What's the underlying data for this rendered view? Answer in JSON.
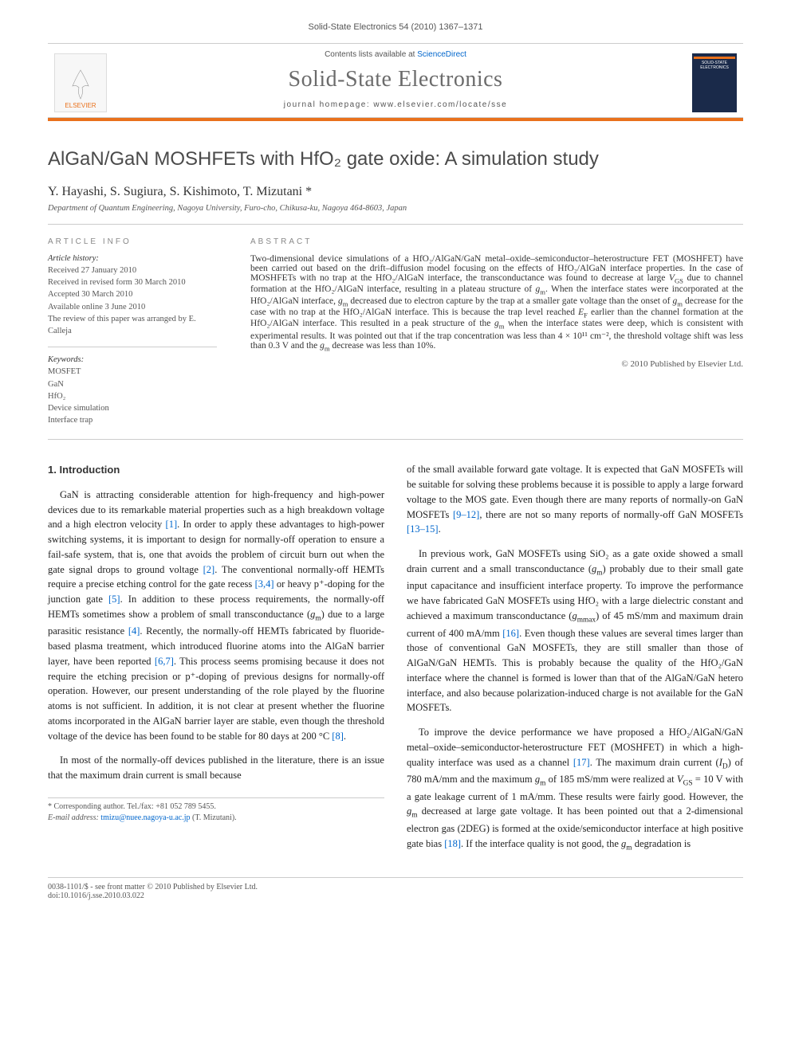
{
  "header": {
    "citation": "Solid-State Electronics 54 (2010) 1367–1371"
  },
  "banner": {
    "contents_prefix": "Contents lists available at ",
    "contents_link": "ScienceDirect",
    "journal_name": "Solid-State Electronics",
    "homepage": "journal homepage: www.elsevier.com/locate/sse",
    "publisher_logo": "ELSEVIER",
    "cover_text": "SOLID-STATE ELECTRONICS"
  },
  "title": "AlGaN/GaN MOSHFETs with HfO₂ gate oxide: A simulation study",
  "authors": "Y. Hayashi, S. Sugiura, S. Kishimoto, T. Mizutani *",
  "affiliation": "Department of Quantum Engineering, Nagoya University, Furo-cho, Chikusa-ku, Nagoya 464-8603, Japan",
  "article_info": {
    "label": "ARTICLE INFO",
    "history_label": "Article history:",
    "history": [
      "Received 27 January 2010",
      "Received in revised form 30 March 2010",
      "Accepted 30 March 2010",
      "Available online 3 June 2010",
      "The review of this paper was arranged by E. Calleja"
    ],
    "keywords_label": "Keywords:",
    "keywords": [
      "MOSFET",
      "GaN",
      "HfO₂",
      "Device simulation",
      "Interface trap"
    ]
  },
  "abstract": {
    "label": "ABSTRACT",
    "text": "Two-dimensional device simulations of a HfO₂/AlGaN/GaN metal–oxide–semiconductor–heterostructure FET (MOSHFET) have been carried out based on the drift–diffusion model focusing on the effects of HfO₂/AlGaN interface properties. In the case of MOSHFETs with no trap at the HfO₂/AlGaN interface, the transconductance was found to decrease at large V_GS due to channel formation at the HfO₂/AlGaN interface, resulting in a plateau structure of g_m. When the interface states were incorporated at the HfO₂/AlGaN interface, g_m decreased due to electron capture by the trap at a smaller gate voltage than the onset of g_m decrease for the case with no trap at the HfO₂/AlGaN interface. This is because the trap level reached E_F earlier than the channel formation at the HfO₂/AlGaN interface. This resulted in a peak structure of the g_m when the interface states were deep, which is consistent with experimental results. It was pointed out that if the trap concentration was less than 4 × 10¹¹ cm⁻², the threshold voltage shift was less than 0.3 V and the g_m decrease was less than 10%.",
    "copyright": "© 2010 Published by Elsevier Ltd."
  },
  "intro": {
    "heading": "1. Introduction",
    "col1_p1": "GaN is attracting considerable attention for high-frequency and high-power devices due to its remarkable material properties such as a high breakdown voltage and a high electron velocity [1]. In order to apply these advantages to high-power switching systems, it is important to design for normally-off operation to ensure a fail-safe system, that is, one that avoids the problem of circuit burn out when the gate signal drops to ground voltage [2]. The conventional normally-off HEMTs require a precise etching control for the gate recess [3,4] or heavy p⁺-doping for the junction gate [5]. In addition to these process requirements, the normally-off HEMTs sometimes show a problem of small transconductance (g_m) due to a large parasitic resistance [4]. Recently, the normally-off HEMTs fabricated by fluoride-based plasma treatment, which introduced fluorine atoms into the AlGaN barrier layer, have been reported [6,7]. This process seems promising because it does not require the etching precision or p⁺-doping of previous designs for normally-off operation. However, our present understanding of the role played by the fluorine atoms is not sufficient. In addition, it is not clear at present whether the fluorine atoms incorporated in the AlGaN barrier layer are stable, even though the threshold voltage of the device has been found to be stable for 80 days at 200 °C [8].",
    "col1_p2": "In most of the normally-off devices published in the literature, there is an issue that the maximum drain current is small because",
    "col2_p1": "of the small available forward gate voltage. It is expected that GaN MOSFETs will be suitable for solving these problems because it is possible to apply a large forward voltage to the MOS gate. Even though there are many reports of normally-on GaN MOSFETs [9–12], there are not so many reports of normally-off GaN MOSFETs [13–15].",
    "col2_p2": "In previous work, GaN MOSFETs using SiO₂ as a gate oxide showed a small drain current and a small transconductance (g_m) probably due to their small gate input capacitance and insufficient interface property. To improve the performance we have fabricated GaN MOSFETs using HfO₂ with a large dielectric constant and achieved a maximum transconductance (g_mmax) of 45 mS/mm and maximum drain current of 400 mA/mm [16]. Even though these values are several times larger than those of conventional GaN MOSFETs, they are still smaller than those of AlGaN/GaN HEMTs. This is probably because the quality of the HfO₂/GaN interface where the channel is formed is lower than that of the AlGaN/GaN hetero interface, and also because polarization-induced charge is not available for the GaN MOSFETs.",
    "col2_p3": "To improve the device performance we have proposed a HfO₂/AlGaN/GaN metal–oxide–semiconductor-heterostructure FET (MOSHFET) in which a high-quality interface was used as a channel [17]. The maximum drain current (I_D) of 780 mA/mm and the maximum g_m of 185 mS/mm were realized at V_GS = 10 V with a gate leakage current of 1 mA/mm. These results were fairly good. However, the g_m decreased at large gate voltage. It has been pointed out that a 2-dimensional electron gas (2DEG) is formed at the oxide/semiconductor interface at high positive gate bias [18]. If the interface quality is not good, the g_m degradation is"
  },
  "footnote": {
    "corr_label": "* Corresponding author. Tel./fax: +81 052 789 5455.",
    "email_label": "E-mail address: ",
    "email": "tmizu@nuee.nagoya-u.ac.jp",
    "email_suffix": " (T. Mizutani)."
  },
  "footer": {
    "left": "0038-1101/$ - see front matter © 2010 Published by Elsevier Ltd.",
    "doi": "doi:10.1016/j.sse.2010.03.022"
  },
  "colors": {
    "accent": "#e9711c",
    "link": "#0066cc",
    "text": "#333333",
    "muted": "#555555",
    "gray_heading": "#4a4a4a",
    "cover_bg": "#1a2a4a",
    "rule": "#cccccc"
  }
}
